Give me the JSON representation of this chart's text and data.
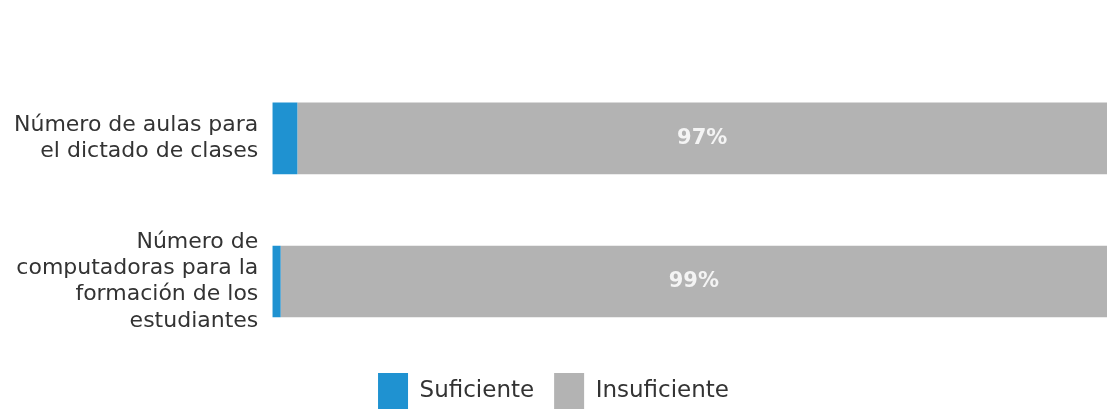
{
  "chart_data": {
    "type": "bar",
    "orientation": "horizontal",
    "stacked": true,
    "categories": [
      "Número de aulas para el dictado de clases",
      "Número de computadoras para la formación de los estudiantes"
    ],
    "series": [
      {
        "name": "Suficiente",
        "color": "#1f92d1",
        "values": [
          3,
          1
        ],
        "value_labels": [
          null,
          null
        ]
      },
      {
        "name": "Insuficiente",
        "color": "#b3b3b3",
        "values": [
          97,
          99
        ],
        "value_labels": [
          "97%",
          "99%"
        ]
      }
    ],
    "xlim": [
      0,
      100
    ],
    "tick_labels": "y",
    "grid": false,
    "legend": "bottom"
  }
}
